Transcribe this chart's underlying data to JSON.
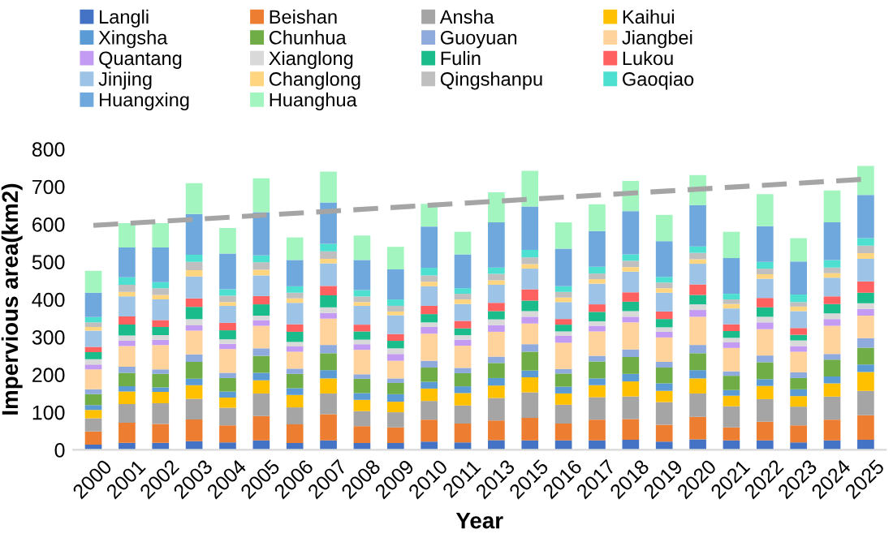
{
  "chart_data": {
    "type": "bar",
    "stacked": true,
    "xlabel": "Year",
    "ylabel": "Impervious area(km2)",
    "categories": [
      "2000",
      "2001",
      "2002",
      "2003",
      "2004",
      "2005",
      "2006",
      "2007",
      "2008",
      "2009",
      "2010",
      "2011",
      "2013",
      "2015",
      "2016",
      "2017",
      "2018",
      "2019",
      "2020",
      "2021",
      "2022",
      "2023",
      "2024",
      "2025"
    ],
    "ylim": [
      0,
      800
    ],
    "yticks": [
      0,
      100,
      200,
      300,
      400,
      500,
      600,
      700,
      800
    ],
    "grid": false,
    "legend": "top",
    "series": [
      {
        "name": "Langli",
        "color": "#4472c4",
        "values": [
          14,
          19,
          19,
          23,
          20,
          25,
          18,
          25,
          18,
          18,
          22,
          20,
          26,
          25,
          25,
          25,
          27,
          22,
          28,
          25,
          25,
          20,
          25,
          27
        ]
      },
      {
        "name": "Beishan",
        "color": "#ed7d31",
        "values": [
          35,
          53,
          50,
          58,
          45,
          65,
          50,
          70,
          45,
          42,
          58,
          50,
          52,
          60,
          45,
          55,
          55,
          45,
          60,
          35,
          50,
          45,
          55,
          65
        ]
      },
      {
        "name": "Ansha",
        "color": "#a5a5a5",
        "values": [
          35,
          50,
          55,
          55,
          47,
          60,
          45,
          55,
          40,
          40,
          50,
          48,
          60,
          68,
          50,
          60,
          60,
          60,
          62,
          56,
          60,
          50,
          62,
          65
        ]
      },
      {
        "name": "Kaihui",
        "color": "#ffc000",
        "values": [
          22,
          33,
          30,
          36,
          27,
          35,
          33,
          40,
          30,
          28,
          33,
          33,
          33,
          40,
          30,
          32,
          40,
          30,
          40,
          28,
          35,
          28,
          35,
          50
        ]
      },
      {
        "name": "Xingsha",
        "color": "#5b9bd5",
        "values": [
          13,
          14,
          12,
          17,
          16,
          20,
          18,
          22,
          18,
          20,
          18,
          18,
          20,
          18,
          18,
          18,
          20,
          20,
          22,
          15,
          18,
          18,
          18,
          20
        ]
      },
      {
        "name": "Chunhua",
        "color": "#70ad47",
        "values": [
          29,
          36,
          36,
          45,
          36,
          45,
          38,
          45,
          38,
          30,
          38,
          35,
          40,
          50,
          35,
          45,
          45,
          42,
          45,
          38,
          45,
          30,
          45,
          45
        ]
      },
      {
        "name": "Guoyuan",
        "color": "#8faadc",
        "values": [
          13,
          16,
          12,
          20,
          14,
          20,
          14,
          22,
          12,
          12,
          18,
          14,
          17,
          20,
          12,
          15,
          20,
          15,
          22,
          12,
          18,
          15,
          15,
          25
        ]
      },
      {
        "name": "Jiangbei",
        "color": "#ffd39b",
        "values": [
          53,
          55,
          65,
          63,
          63,
          60,
          45,
          70,
          65,
          47,
          72,
          59,
          66,
          55,
          70,
          65,
          72,
          65,
          75,
          62,
          70,
          55,
          75,
          60
        ]
      },
      {
        "name": "Quantang",
        "color": "#c39bf2",
        "values": [
          13,
          14,
          14,
          14,
          14,
          15,
          14,
          15,
          15,
          18,
          18,
          16,
          18,
          18,
          18,
          15,
          15,
          15,
          18,
          15,
          18,
          15,
          18,
          18
        ]
      },
      {
        "name": "Xianglong",
        "color": "#d9d9d9",
        "values": [
          14,
          14,
          12,
          17,
          12,
          12,
          12,
          15,
          12,
          15,
          12,
          12,
          15,
          15,
          12,
          12,
          15,
          12,
          15,
          12,
          15,
          15,
          15,
          15
        ]
      },
      {
        "name": "Fulin",
        "color": "#1abc8c",
        "values": [
          19,
          29,
          22,
          32,
          24,
          30,
          27,
          32,
          22,
          20,
          22,
          18,
          22,
          28,
          18,
          25,
          25,
          22,
          25,
          18,
          25,
          15,
          25,
          28
        ]
      },
      {
        "name": "Lukou",
        "color": "#ff6161",
        "values": [
          14,
          22,
          18,
          23,
          20,
          22,
          20,
          25,
          18,
          18,
          22,
          20,
          22,
          30,
          15,
          20,
          25,
          20,
          28,
          18,
          25,
          18,
          20,
          30
        ]
      },
      {
        "name": "Jinjing",
        "color": "#9dc3e6",
        "values": [
          43,
          53,
          55,
          58,
          45,
          55,
          57,
          60,
          50,
          50,
          52,
          45,
          48,
          55,
          45,
          55,
          55,
          50,
          55,
          42,
          51,
          45,
          50,
          60
        ]
      },
      {
        "name": "Changlong",
        "color": "#ffd580",
        "values": [
          10,
          12,
          12,
          17,
          10,
          15,
          12,
          12,
          10,
          10,
          12,
          12,
          12,
          12,
          12,
          12,
          12,
          12,
          12,
          12,
          12,
          12,
          12,
          15
        ]
      },
      {
        "name": "Qingshanpu",
        "color": "#bfbfbf",
        "values": [
          12,
          19,
          18,
          22,
          17,
          20,
          15,
          20,
          15,
          15,
          17,
          15,
          17,
          18,
          15,
          15,
          17,
          15,
          17,
          12,
          15,
          12,
          15,
          20
        ]
      },
      {
        "name": "Gaoqiao",
        "color": "#4de0d0",
        "values": [
          14,
          20,
          16,
          19,
          17,
          18,
          17,
          20,
          17,
          17,
          20,
          15,
          17,
          20,
          15,
          18,
          17,
          15,
          17,
          15,
          18,
          20,
          20,
          20
        ]
      },
      {
        "name": "Huangxing",
        "color": "#6fa8dc",
        "values": [
          65,
          79,
          92,
          108,
          95,
          115,
          70,
          110,
          80,
          80,
          110,
          90,
          120,
          115,
          100,
          95,
          115,
          95,
          110,
          95,
          95,
          88,
          100,
          115
        ]
      },
      {
        "name": "Huanghua",
        "color": "#a3f5c0",
        "values": [
          58,
          65,
          65,
          82,
          68,
          90,
          60,
          82,
          65,
          60,
          60,
          60,
          80,
          95,
          70,
          71,
          80,
          70,
          80,
          70,
          85,
          62,
          85,
          77
        ]
      },
      {
        "type": "line",
        "color": "#a5a5a5",
        "line_style": "dashed",
        "values": [
          597,
          null,
          null,
          null,
          null,
          null,
          null,
          null,
          null,
          null,
          null,
          null,
          null,
          null,
          null,
          null,
          null,
          null,
          null,
          null,
          null,
          null,
          null,
          720
        ]
      }
    ]
  }
}
